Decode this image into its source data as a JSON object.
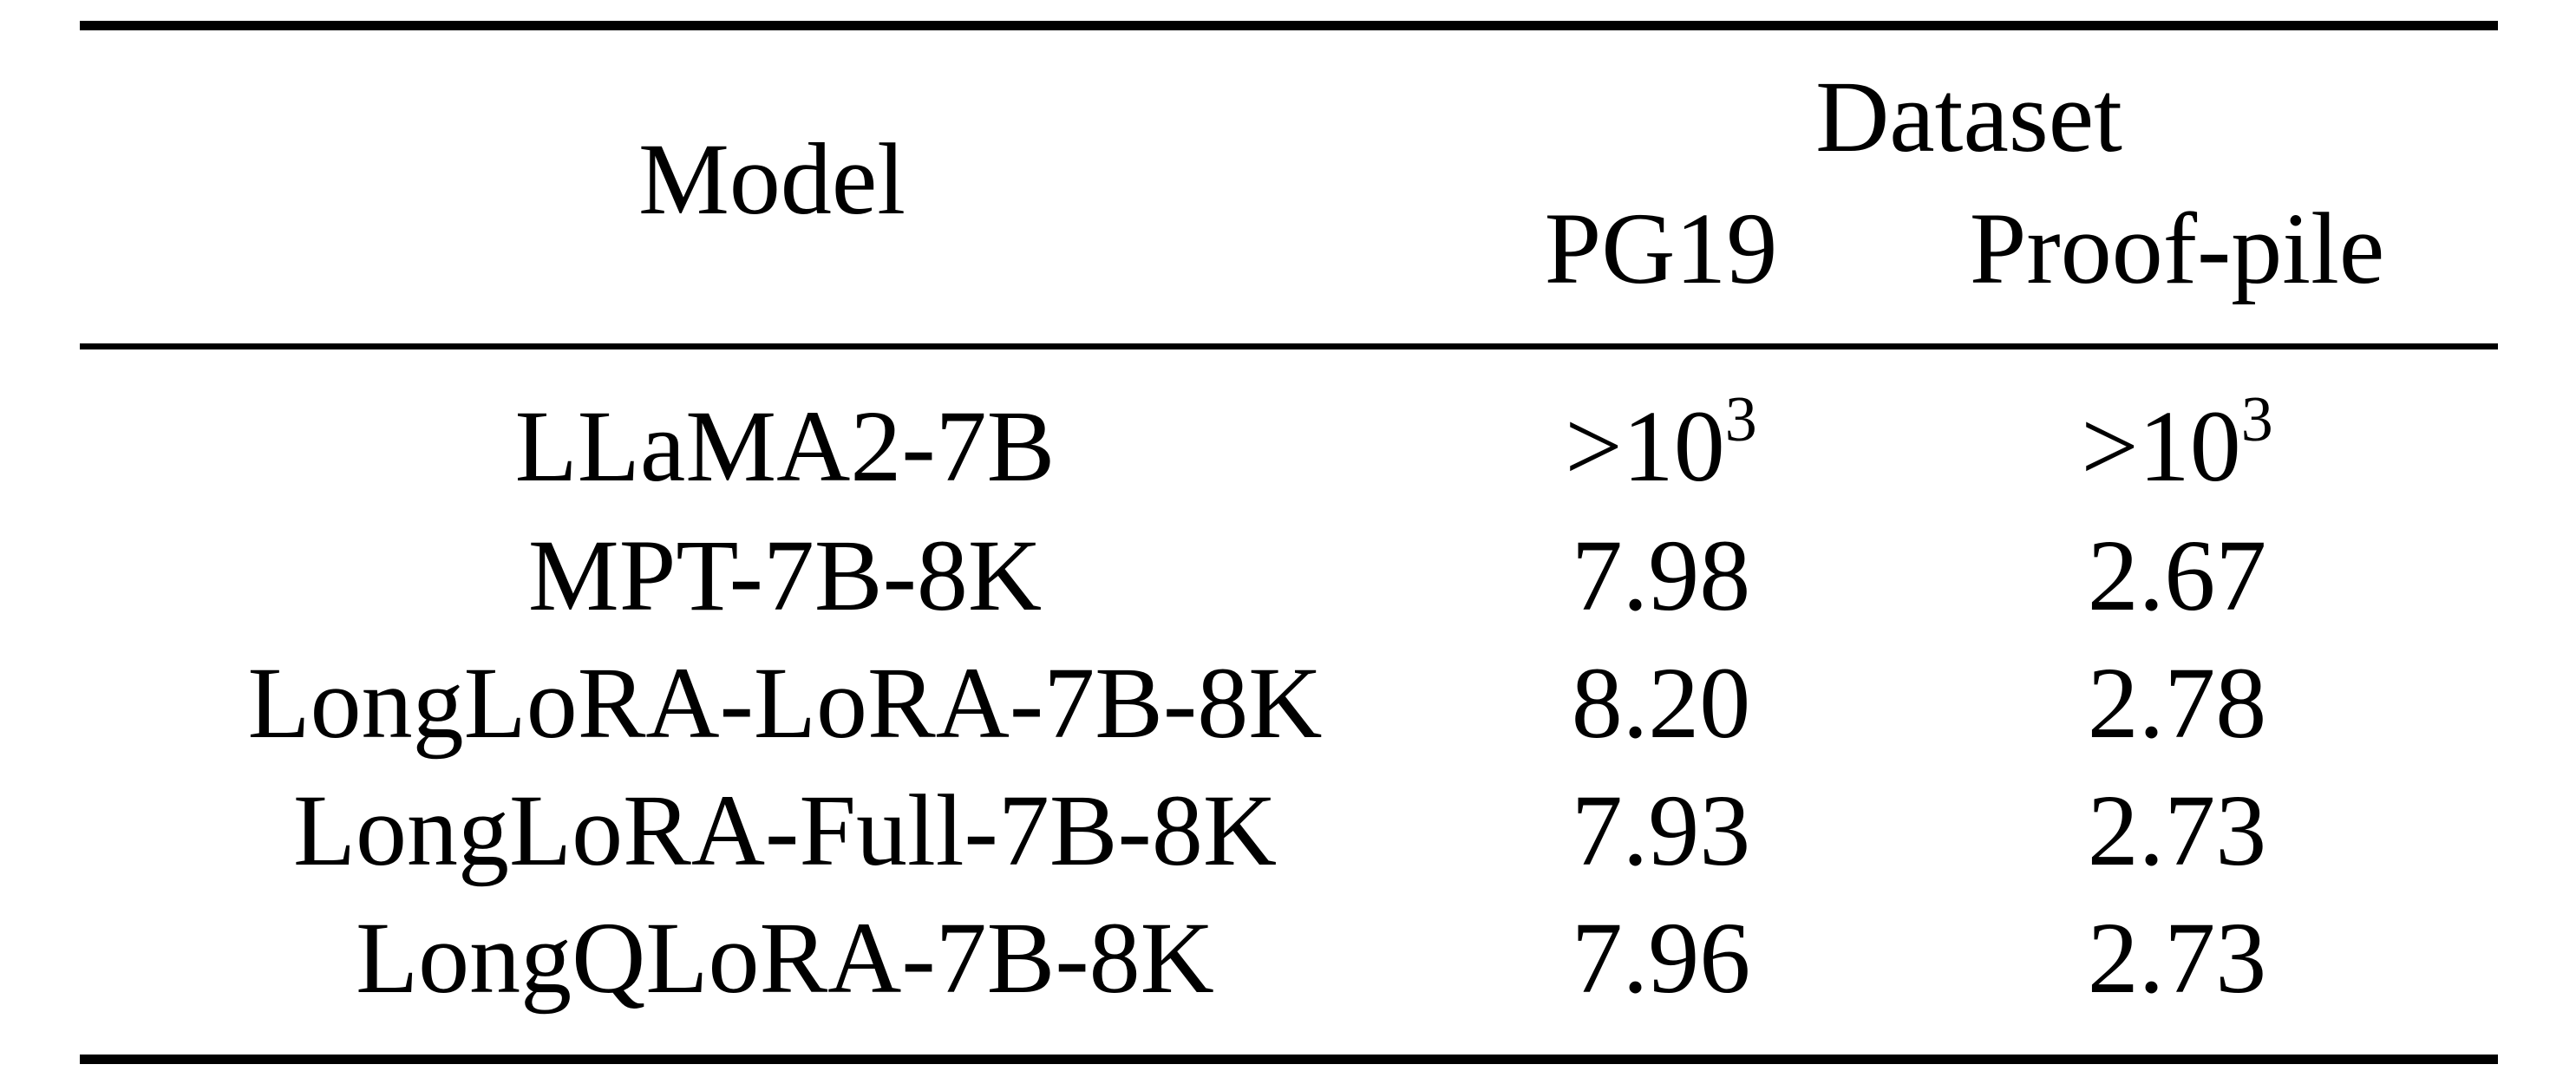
{
  "table": {
    "header": {
      "model": "Model",
      "dataset": "Dataset",
      "columns": [
        "PG19",
        "Proof-pile"
      ]
    },
    "rows": [
      {
        "model": "LLaMA2-7B",
        "pg19": {
          "base": ">10",
          "exp": "3"
        },
        "proof": {
          "base": ">10",
          "exp": "3"
        }
      },
      {
        "model": "MPT-7B-8K",
        "pg19": {
          "base": "7.98",
          "exp": ""
        },
        "proof": {
          "base": "2.67",
          "exp": ""
        }
      },
      {
        "model": "LongLoRA-LoRA-7B-8K",
        "pg19": {
          "base": "8.20",
          "exp": ""
        },
        "proof": {
          "base": "2.78",
          "exp": ""
        }
      },
      {
        "model": "LongLoRA-Full-7B-8K",
        "pg19": {
          "base": "7.93",
          "exp": ""
        },
        "proof": {
          "base": "2.73",
          "exp": ""
        }
      },
      {
        "model": "LongQLoRA-7B-8K",
        "pg19": {
          "base": "7.96",
          "exp": ""
        },
        "proof": {
          "base": "2.73",
          "exp": ""
        }
      }
    ]
  }
}
